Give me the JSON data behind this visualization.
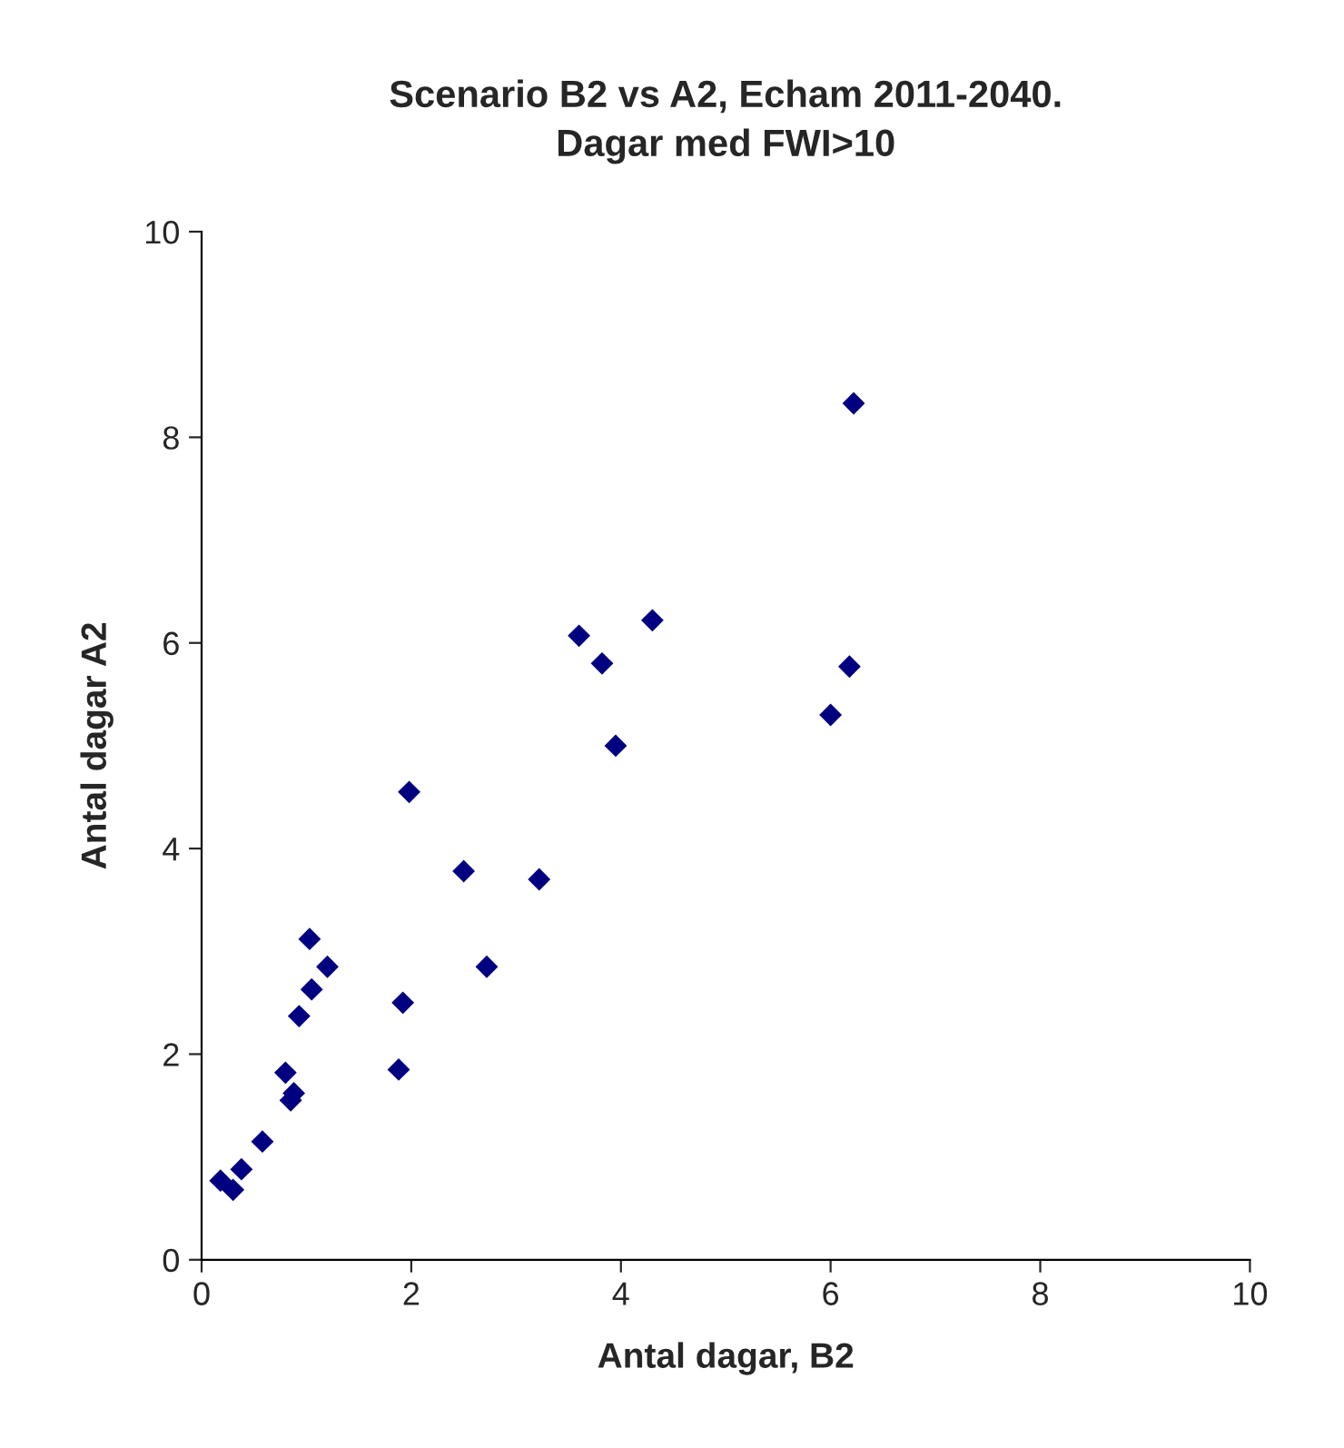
{
  "chart_data": {
    "type": "scatter",
    "title": "Scenario B2 vs A2, Echam 2011-2040.\nDagar med FWI>10",
    "xlabel": "Antal dagar, B2",
    "ylabel": "Antal dagar A2",
    "x": [
      0.18,
      0.3,
      0.38,
      0.58,
      0.8,
      0.85,
      0.88,
      0.93,
      1.03,
      1.05,
      1.2,
      1.88,
      1.92,
      1.98,
      2.5,
      2.72,
      3.22,
      3.6,
      3.82,
      3.95,
      4.3,
      6.0,
      6.18,
      6.22
    ],
    "series": [
      {
        "color": "#000080",
        "values": [
          0.77,
          0.68,
          0.88,
          1.15,
          1.82,
          1.55,
          1.62,
          2.37,
          3.12,
          2.63,
          2.85,
          1.85,
          2.5,
          4.55,
          3.78,
          2.85,
          3.7,
          6.07,
          5.8,
          5.0,
          6.22,
          5.3,
          5.77,
          8.33
        ]
      }
    ],
    "xlim": [
      0,
      10
    ],
    "ylim": [
      0,
      10
    ],
    "xticks": [
      0,
      2,
      4,
      6,
      8,
      10
    ],
    "yticks": [
      0,
      2,
      4,
      6,
      8,
      10
    ],
    "marker": "diamond",
    "grid": false
  }
}
